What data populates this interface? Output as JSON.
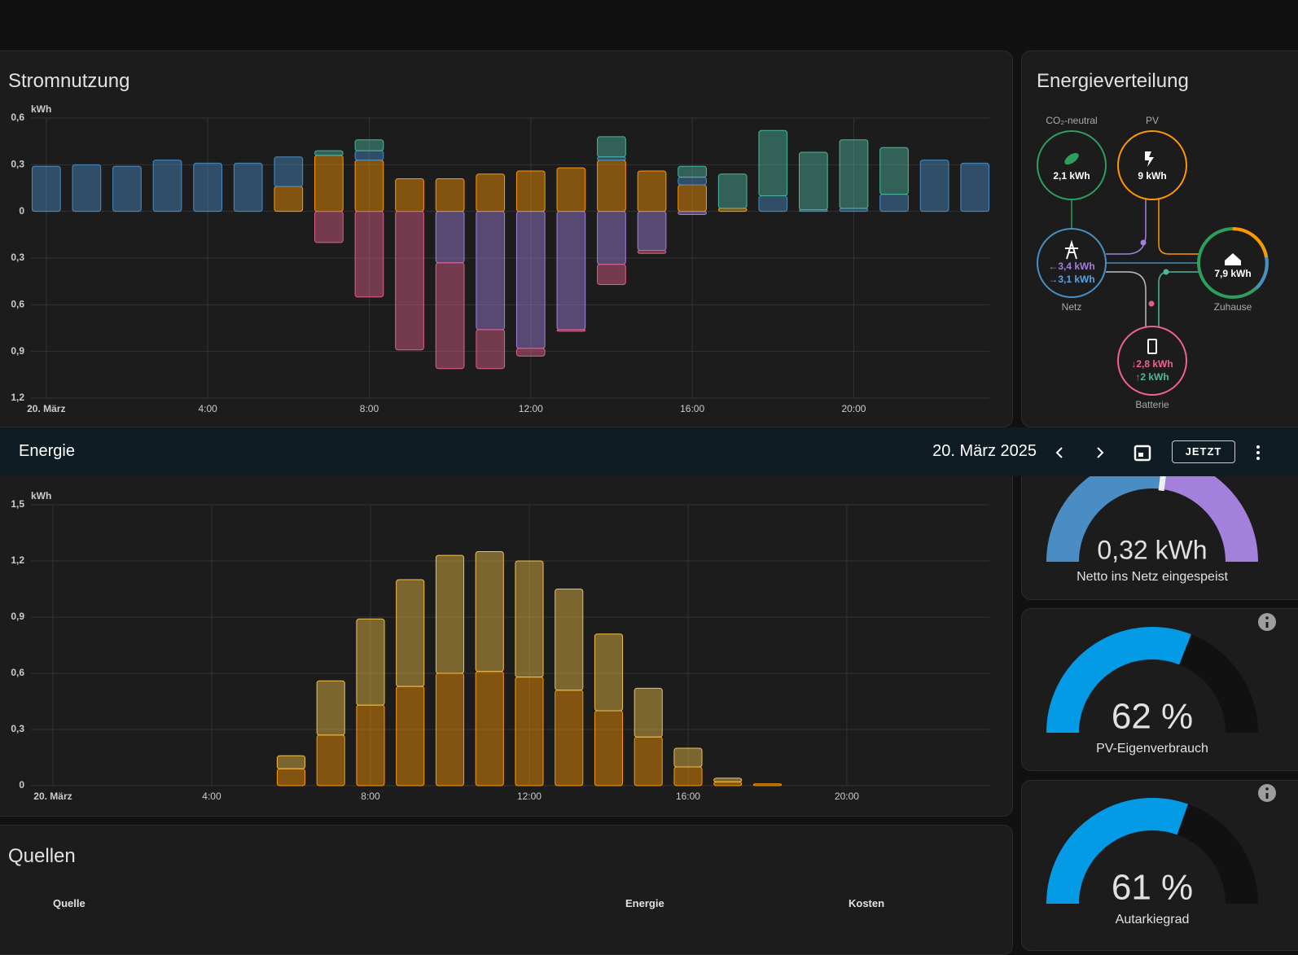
{
  "chart_data": [
    {
      "type": "bar",
      "title": "Stromnutzung",
      "y_unit": "kWh",
      "stacked": true,
      "grid": true,
      "categories": [
        "20. März",
        null,
        null,
        null,
        "4:00",
        null,
        null,
        null,
        "8:00",
        null,
        null,
        null,
        "12:00",
        null,
        null,
        null,
        "16:00",
        null,
        null,
        null,
        "20:00",
        null,
        null,
        null
      ],
      "series": [
        {
          "color": "#ff9800",
          "values": [
            0,
            0,
            0,
            0,
            0,
            0,
            0.16,
            0.36,
            0.33,
            0.21,
            0.21,
            0.24,
            0.26,
            0.28,
            0.33,
            0.26,
            0.17,
            0.02,
            0,
            0,
            0,
            0,
            0,
            0
          ]
        },
        {
          "color": "#4a8cc4",
          "values": [
            0.29,
            0.3,
            0.29,
            0.33,
            0.31,
            0.31,
            0.19,
            0,
            0.06,
            0,
            0,
            0,
            0,
            0,
            0.02,
            0,
            0.05,
            0,
            0.1,
            0.01,
            0.02,
            0.11,
            0.33,
            0.31
          ]
        },
        {
          "color": "#4db6a0",
          "values": [
            0,
            0,
            0,
            0,
            0,
            0,
            0,
            0.03,
            0.07,
            0,
            0,
            0,
            0,
            0,
            0.13,
            0,
            0.07,
            0.22,
            0.42,
            0.37,
            0.44,
            0.3,
            0,
            0
          ]
        },
        {
          "color": "#a280db",
          "values": [
            0,
            0,
            0,
            0,
            0,
            0,
            0,
            0,
            0,
            0,
            -0.33,
            -0.76,
            -0.88,
            -0.76,
            -0.34,
            -0.25,
            -0.02,
            0,
            0,
            0,
            0,
            0,
            0,
            0
          ]
        },
        {
          "color": "#e0608a",
          "values": [
            0,
            0,
            0,
            0,
            0,
            0,
            0,
            -0.2,
            -0.55,
            -0.89,
            -0.68,
            -0.25,
            -0.05,
            -0.01,
            -0.13,
            -0.02,
            0,
            0,
            0,
            0,
            0,
            0,
            0,
            0
          ]
        }
      ],
      "ylim": [
        -1.2,
        0.6
      ],
      "yticks": [
        {
          "value": 0.6,
          "label": "0,6"
        },
        {
          "value": 0.3,
          "label": "0,3"
        },
        0,
        {
          "value": -0.3,
          "label": "0,3"
        },
        {
          "value": -0.6,
          "label": "0,6"
        },
        {
          "value": -0.9,
          "label": "0,9"
        },
        {
          "value": -1.2,
          "label": "1,2"
        }
      ]
    },
    {
      "type": "bar",
      "y_unit": "kWh",
      "stacked": true,
      "grid": true,
      "categories": [
        "20. März",
        null,
        null,
        null,
        "4:00",
        null,
        null,
        null,
        "8:00",
        null,
        null,
        null,
        "12:00",
        null,
        null,
        null,
        "16:00",
        null,
        null,
        null,
        "20:00",
        null,
        null,
        null
      ],
      "series": [
        {
          "color": "#ff9800",
          "values": [
            0,
            0,
            0,
            0,
            0,
            0,
            0.09,
            0.27,
            0.43,
            0.53,
            0.6,
            0.61,
            0.58,
            0.51,
            0.4,
            0.26,
            0.1,
            0.02,
            0.01,
            0,
            0,
            0,
            0,
            0
          ]
        },
        {
          "color": "#f2c04a",
          "values": [
            0,
            0,
            0,
            0,
            0,
            0,
            0.07,
            0.29,
            0.46,
            0.57,
            0.63,
            0.64,
            0.62,
            0.54,
            0.41,
            0.26,
            0.1,
            0.02,
            0,
            0,
            0,
            0,
            0,
            0
          ]
        }
      ],
      "ylim": [
        0,
        1.5
      ],
      "yticks": [
        0,
        {
          "value": 0.3,
          "label": "0,3"
        },
        {
          "value": 0.6,
          "label": "0,6"
        },
        {
          "value": 0.9,
          "label": "0,9"
        },
        {
          "value": 1.2,
          "label": "1,2"
        },
        {
          "value": 1.5,
          "label": "1,5"
        }
      ]
    }
  ],
  "toolbar": {
    "title": "Energie",
    "date": "20. März 2025",
    "button": "JETZT"
  },
  "energy_distribution": {
    "title": "Energieverteilung",
    "co2": {
      "label": "CO₂-neutral",
      "value": "2,1 kWh"
    },
    "pv": {
      "label": "PV",
      "value": "9 kWh"
    },
    "grid": {
      "label": "Netz",
      "in": "←3,4 kWh",
      "out": "→3,1 kWh"
    },
    "home": {
      "label": "Zuhause",
      "value": "7,9 kWh"
    },
    "battery": {
      "label": "Batterie",
      "in": "↓2,8 kWh",
      "out": "↑2 kWh"
    }
  },
  "gauges": [
    {
      "value_label": "0,32 kWh",
      "label": "Netto ins Netz eingespeist"
    },
    {
      "value": 62,
      "value_label": "62 %",
      "label": "PV-Eigenverbrauch"
    },
    {
      "value": 61,
      "value_label": "61 %",
      "label": "Autarkiegrad"
    }
  ],
  "sources": {
    "title": "Quellen",
    "columns": [
      "Quelle",
      "Energie",
      "Kosten"
    ]
  }
}
